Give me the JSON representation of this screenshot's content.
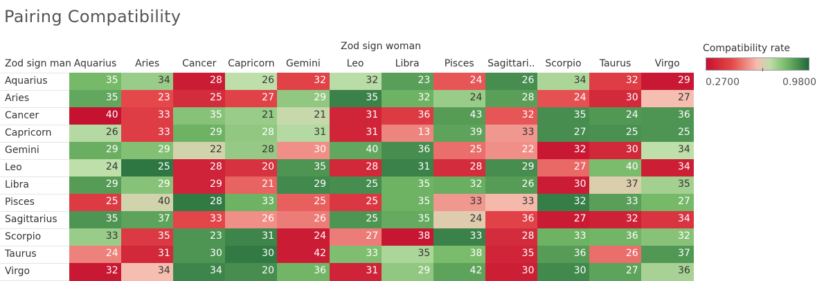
{
  "chart_data": {
    "type": "heatmap",
    "title": "Pairing Compatibility",
    "x_title": "Zod sign woman",
    "y_title": "Zod sign man",
    "columns": [
      "Aquarius",
      "Aries",
      "Cancer",
      "Capricorn",
      "Gemini",
      "Leo",
      "Libra",
      "Pisces",
      "Sagittari..",
      "Scorpio",
      "Taurus",
      "Virgo"
    ],
    "rows": [
      "Aquarius",
      "Aries",
      "Cancer",
      "Capricorn",
      "Gemini",
      "Leo",
      "Libra",
      "Pisces",
      "Sagittarius",
      "Scorpio",
      "Taurus",
      "Virgo"
    ],
    "values": [
      [
        35,
        34,
        28,
        26,
        32,
        32,
        23,
        24,
        26,
        34,
        32,
        29
      ],
      [
        35,
        23,
        25,
        27,
        29,
        35,
        32,
        24,
        28,
        24,
        30,
        27
      ],
      [
        40,
        33,
        35,
        21,
        21,
        31,
        36,
        43,
        32,
        35,
        24,
        36
      ],
      [
        26,
        33,
        29,
        28,
        31,
        31,
        13,
        39,
        33,
        27,
        25,
        25
      ],
      [
        29,
        29,
        22,
        28,
        30,
        40,
        36,
        25,
        22,
        32,
        30,
        34
      ],
      [
        24,
        25,
        28,
        20,
        35,
        28,
        31,
        28,
        29,
        27,
        40,
        34
      ],
      [
        29,
        29,
        29,
        21,
        29,
        25,
        35,
        32,
        26,
        30,
        37,
        35
      ],
      [
        25,
        40,
        28,
        33,
        25,
        25,
        35,
        33,
        33,
        32,
        33,
        27
      ],
      [
        35,
        37,
        33,
        26,
        26,
        25,
        35,
        24,
        36,
        27,
        32,
        34
      ],
      [
        33,
        35,
        23,
        31,
        24,
        27,
        38,
        33,
        28,
        33,
        36,
        32
      ],
      [
        24,
        31,
        30,
        30,
        42,
        33,
        35,
        38,
        35,
        36,
        26,
        37
      ],
      [
        32,
        34,
        34,
        20,
        36,
        31,
        29,
        42,
        30,
        30,
        27,
        36
      ]
    ],
    "color_levels": [
      [
        0.78,
        0.7,
        0.05,
        0.62,
        0.22,
        0.63,
        0.85,
        0.28,
        0.9,
        0.66,
        0.2,
        0.03
      ],
      [
        0.83,
        0.25,
        0.12,
        0.22,
        0.72,
        0.93,
        0.8,
        0.7,
        0.85,
        0.27,
        0.11,
        0.5
      ],
      [
        0.0,
        0.2,
        0.74,
        0.7,
        0.6,
        0.09,
        0.19,
        0.86,
        0.28,
        0.9,
        0.87,
        0.88
      ],
      [
        0.64,
        0.2,
        0.8,
        0.72,
        0.64,
        0.09,
        0.38,
        0.84,
        0.42,
        0.9,
        0.89,
        0.88
      ],
      [
        0.81,
        0.75,
        0.58,
        0.71,
        0.4,
        0.83,
        0.9,
        0.33,
        0.4,
        0.03,
        0.1,
        0.62
      ],
      [
        0.62,
        0.96,
        0.08,
        0.15,
        0.88,
        0.1,
        0.93,
        0.12,
        0.9,
        0.32,
        0.77,
        0.06
      ],
      [
        0.86,
        0.74,
        0.08,
        0.31,
        0.91,
        0.9,
        0.8,
        0.81,
        0.86,
        0.05,
        0.56,
        0.68
      ],
      [
        0.19,
        0.58,
        0.95,
        0.8,
        0.3,
        0.17,
        0.8,
        0.42,
        0.49,
        0.94,
        0.85,
        0.78
      ],
      [
        0.88,
        0.84,
        0.24,
        0.4,
        0.36,
        0.88,
        0.82,
        0.55,
        0.22,
        0.04,
        0.07,
        0.16
      ],
      [
        0.7,
        0.18,
        0.88,
        0.92,
        0.05,
        0.36,
        0.02,
        0.93,
        0.12,
        0.8,
        0.79,
        0.74
      ],
      [
        0.37,
        0.1,
        0.88,
        0.95,
        0.05,
        0.76,
        0.66,
        0.77,
        0.09,
        0.86,
        0.33,
        0.87
      ],
      [
        0.03,
        0.5,
        0.92,
        0.9,
        0.79,
        0.08,
        0.72,
        0.84,
        0.06,
        0.91,
        0.84,
        0.67
      ]
    ],
    "colorbar": {
      "title": "Compatibility rate",
      "min_label": "0.2700",
      "max_label": "0.9800"
    }
  }
}
